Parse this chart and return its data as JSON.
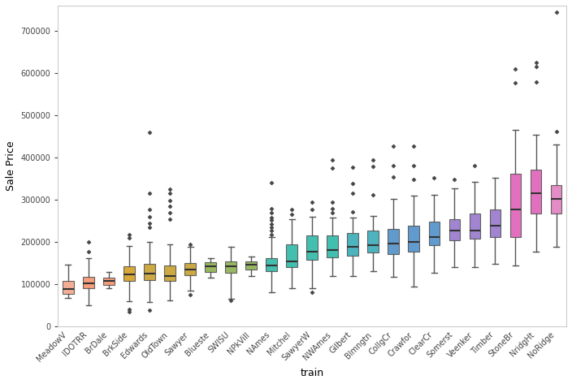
{
  "neighborhoods": [
    "MeadowV",
    "IDOTRR",
    "BrDale",
    "BrkSide",
    "Edwards",
    "OldTown",
    "Sawyer",
    "Blueste",
    "SWISU",
    "NPkVill",
    "NAmes",
    "Mitchel",
    "SawyerW",
    "NWAmes",
    "Gilbert",
    "Blmngtn",
    "CollgCr",
    "Crawfor",
    "ClearCr",
    "Somerst",
    "Veenker",
    "Timber",
    "StoneBr",
    "NridgHt",
    "NoRidge"
  ],
  "colors": [
    "#F4A58A",
    "#F4936E",
    "#F4936E",
    "#D4A020",
    "#C8A030",
    "#C8A030",
    "#C8A030",
    "#8DB050",
    "#8DB050",
    "#8DB050",
    "#2EB8A8",
    "#2EB8A8",
    "#2EB8A8",
    "#2EB8A8",
    "#3AACB8",
    "#3AACB8",
    "#5090C8",
    "#5090C8",
    "#5090C8",
    "#9878CC",
    "#9878CC",
    "#9878CC",
    "#E060B8",
    "#E060B8",
    "#E080C0"
  ],
  "ylabel": "Sale Price",
  "xlabel": "train",
  "ylim": [
    0,
    760000
  ],
  "yticks": [
    0,
    100000,
    200000,
    300000,
    400000,
    500000,
    600000,
    700000
  ],
  "box_data": {
    "MeadowV": {
      "q1": 78000,
      "med": 88000,
      "q3": 108000,
      "whislo": 68000,
      "whishi": 147000,
      "fliers": []
    },
    "IDOTRR": {
      "q1": 90000,
      "med": 103000,
      "q3": 118000,
      "whislo": 50000,
      "whishi": 162000,
      "fliers": [
        178000,
        200000
      ]
    },
    "BrDale": {
      "q1": 98000,
      "med": 108000,
      "q3": 116000,
      "whislo": 90000,
      "whishi": 130000,
      "fliers": []
    },
    "BrkSide": {
      "q1": 108000,
      "med": 124000,
      "q3": 142000,
      "whislo": 60000,
      "whishi": 190000,
      "fliers": [
        210000,
        218000,
        35000,
        40000
      ]
    },
    "Edwards": {
      "q1": 110000,
      "med": 125000,
      "q3": 148000,
      "whislo": 58000,
      "whishi": 200000,
      "fliers": [
        235000,
        245000,
        260000,
        278000,
        315000,
        460000,
        38000
      ]
    },
    "OldTown": {
      "q1": 108000,
      "med": 120000,
      "q3": 145000,
      "whislo": 62000,
      "whishi": 195000,
      "fliers": [
        255000,
        270000,
        285000,
        298000,
        315000,
        325000
      ]
    },
    "Sawyer": {
      "q1": 122000,
      "med": 135000,
      "q3": 150000,
      "whislo": 85000,
      "whishi": 188000,
      "fliers": [
        75000,
        195000
      ]
    },
    "Blueste": {
      "q1": 130000,
      "med": 142000,
      "q3": 152000,
      "whislo": 115000,
      "whishi": 162000,
      "fliers": []
    },
    "SWISU": {
      "q1": 128000,
      "med": 142000,
      "q3": 155000,
      "whislo": 65000,
      "whishi": 188000,
      "fliers": [
        62000
      ]
    },
    "NPkVill": {
      "q1": 135000,
      "med": 146000,
      "q3": 154000,
      "whislo": 120000,
      "whishi": 165000,
      "fliers": []
    },
    "NAmes": {
      "q1": 132000,
      "med": 145000,
      "q3": 162000,
      "whislo": 82000,
      "whishi": 212000,
      "fliers": [
        218000,
        228000,
        235000,
        242000,
        252000,
        258000,
        270000,
        280000,
        340000
      ]
    },
    "Mitchel": {
      "q1": 140000,
      "med": 155000,
      "q3": 195000,
      "whislo": 90000,
      "whishi": 255000,
      "fliers": [
        265000,
        278000
      ]
    },
    "SawyerW": {
      "q1": 158000,
      "med": 178000,
      "q3": 215000,
      "whislo": 90000,
      "whishi": 260000,
      "fliers": [
        278000,
        295000,
        82000
      ]
    },
    "NWAmes": {
      "q1": 163000,
      "med": 182000,
      "q3": 215000,
      "whislo": 120000,
      "whishi": 258000,
      "fliers": [
        270000,
        280000,
        295000,
        375000,
        395000
      ]
    },
    "Gilbert": {
      "q1": 168000,
      "med": 188000,
      "q3": 222000,
      "whislo": 120000,
      "whishi": 258000,
      "fliers": [
        272000,
        315000,
        338000,
        378000
      ]
    },
    "Blmngtn": {
      "q1": 175000,
      "med": 192000,
      "q3": 228000,
      "whislo": 132000,
      "whishi": 262000,
      "fliers": [
        312000,
        380000,
        395000
      ]
    },
    "CollgCr": {
      "q1": 172000,
      "med": 197000,
      "q3": 232000,
      "whislo": 118000,
      "whishi": 302000,
      "fliers": [
        355000,
        382000,
        428000
      ]
    },
    "Crawfor": {
      "q1": 178000,
      "med": 200000,
      "q3": 238000,
      "whislo": 95000,
      "whishi": 310000,
      "fliers": [
        348000,
        382000,
        428000
      ]
    },
    "ClearCr": {
      "q1": 192000,
      "med": 212000,
      "q3": 248000,
      "whislo": 128000,
      "whishi": 312000,
      "fliers": [
        352000
      ]
    },
    "Somerst": {
      "q1": 205000,
      "med": 228000,
      "q3": 255000,
      "whislo": 140000,
      "whishi": 328000,
      "fliers": [
        348000
      ]
    },
    "Veenker": {
      "q1": 208000,
      "med": 228000,
      "q3": 268000,
      "whislo": 140000,
      "whishi": 342000,
      "fliers": [
        382000
      ]
    },
    "Timber": {
      "q1": 212000,
      "med": 238000,
      "q3": 278000,
      "whislo": 148000,
      "whishi": 352000,
      "fliers": []
    },
    "StoneBr": {
      "q1": 212000,
      "med": 278000,
      "q3": 362000,
      "whislo": 145000,
      "whishi": 465000,
      "fliers": [
        578000,
        610000
      ]
    },
    "NridgHt": {
      "q1": 268000,
      "med": 315000,
      "q3": 372000,
      "whislo": 178000,
      "whishi": 455000,
      "fliers": [
        580000,
        615000,
        625000
      ]
    },
    "NoRidge": {
      "q1": 268000,
      "med": 302000,
      "q3": 335000,
      "whislo": 188000,
      "whishi": 432000,
      "fliers": [
        462000,
        745000
      ]
    }
  },
  "figsize": [
    7.04,
    4.73
  ],
  "dpi": 100
}
